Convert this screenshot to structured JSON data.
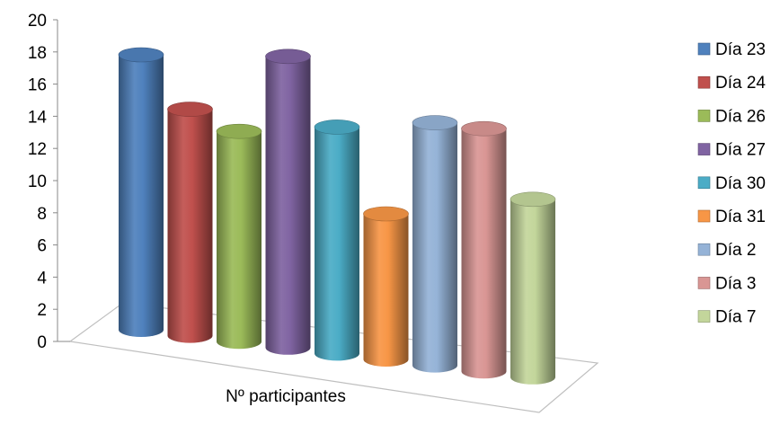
{
  "chart_data": {
    "type": "bar",
    "variant": "3d-cylinder",
    "title": "",
    "xlabel": "Nº participantes",
    "ylabel": "",
    "ylim": [
      0,
      20
    ],
    "yticks": [
      "0",
      "2",
      "4",
      "6",
      "8",
      "10",
      "12",
      "14",
      "16",
      "18",
      "20"
    ],
    "grid": false,
    "legend_position": "right",
    "categories": [
      "Nº participantes"
    ],
    "series": [
      {
        "name": "Día 23",
        "values": [
          17
        ],
        "color": "#4F81BD"
      },
      {
        "name": "Día 24",
        "values": [
          14
        ],
        "color": "#C0504D"
      },
      {
        "name": "Día 26",
        "values": [
          13
        ],
        "color": "#9BBB59"
      },
      {
        "name": "Día 27",
        "values": [
          18
        ],
        "color": "#8064A2"
      },
      {
        "name": "Día 30",
        "values": [
          14
        ],
        "color": "#4BACC6"
      },
      {
        "name": "Día 31",
        "values": [
          9
        ],
        "color": "#F79646"
      },
      {
        "name": "Día 2",
        "values": [
          15
        ],
        "color": "#95B3D7"
      },
      {
        "name": "Día 3",
        "values": [
          15
        ],
        "color": "#D99694"
      },
      {
        "name": "Día 7",
        "values": [
          11
        ],
        "color": "#C3D69B"
      }
    ]
  }
}
